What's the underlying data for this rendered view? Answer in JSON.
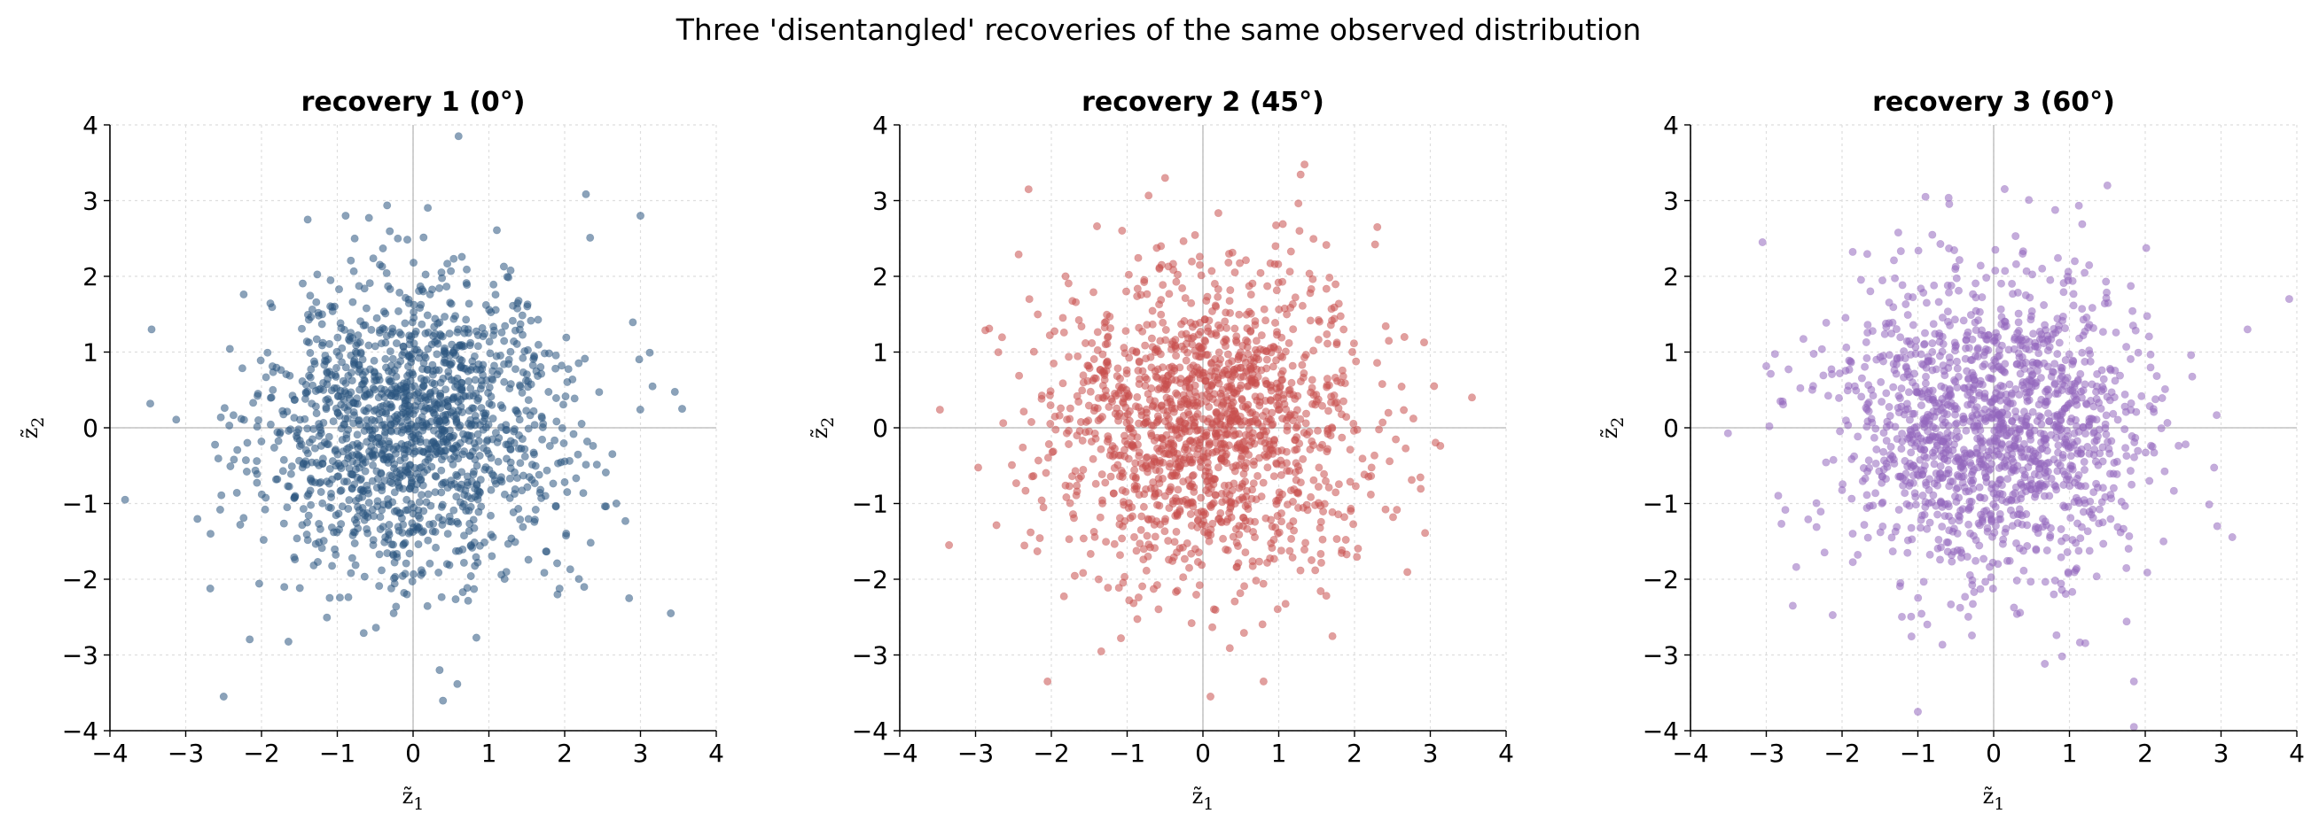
{
  "figure": {
    "title": "Three 'disentangled' recoveries of the same observed distribution"
  },
  "chart_data": [
    {
      "type": "scatter",
      "title": "recovery 1 (0°)",
      "xlabel": "z̃1",
      "ylabel": "z̃2",
      "xlim": [
        -4,
        4
      ],
      "ylim": [
        -4,
        4
      ],
      "xticks": [
        -4,
        -3,
        -2,
        -1,
        0,
        1,
        2,
        3,
        4
      ],
      "yticks": [
        -4,
        -3,
        -2,
        -1,
        0,
        1,
        2,
        3,
        4
      ],
      "xtick_labels": [
        "−4",
        "−3",
        "−2",
        "−1",
        "0",
        "1",
        "2",
        "3",
        "4"
      ],
      "ytick_labels": [
        "−4",
        "−3",
        "−2",
        "−1",
        "0",
        "1",
        "2",
        "3",
        "4"
      ],
      "grid": true,
      "rotation_deg": 0,
      "color": "#2c5580",
      "seed": 11,
      "n_points": 1500,
      "notable_points": [
        [
          0.6,
          3.85
        ],
        [
          3.0,
          2.8
        ],
        [
          3.4,
          -2.45
        ],
        [
          -2.5,
          -3.55
        ],
        [
          -3.8,
          -0.95
        ],
        [
          -3.45,
          1.3
        ],
        [
          0.35,
          -3.2
        ],
        [
          3.55,
          0.25
        ],
        [
          2.85,
          -2.25
        ]
      ]
    },
    {
      "type": "scatter",
      "title": "recovery 2 (45°)",
      "xlabel": "z̃1",
      "ylabel": "z̃2",
      "xlim": [
        -4,
        4
      ],
      "ylim": [
        -4,
        4
      ],
      "xticks": [
        -4,
        -3,
        -2,
        -1,
        0,
        1,
        2,
        3,
        4
      ],
      "yticks": [
        -4,
        -3,
        -2,
        -1,
        0,
        1,
        2,
        3,
        4
      ],
      "xtick_labels": [
        "−4",
        "−3",
        "−2",
        "−1",
        "0",
        "1",
        "2",
        "3",
        "4"
      ],
      "ytick_labels": [
        "−4",
        "−3",
        "−2",
        "−1",
        "0",
        "1",
        "2",
        "3",
        "4"
      ],
      "grid": true,
      "rotation_deg": 45,
      "color": "#c9514f",
      "seed": 23,
      "n_points": 1500,
      "notable_points": [
        [
          -2.3,
          3.15
        ],
        [
          -0.5,
          3.3
        ],
        [
          3.55,
          0.4
        ],
        [
          3.05,
          0.55
        ],
        [
          -3.35,
          -1.55
        ],
        [
          0.1,
          -3.55
        ],
        [
          -2.05,
          -3.35
        ],
        [
          0.8,
          -3.35
        ],
        [
          2.3,
          2.65
        ]
      ]
    },
    {
      "type": "scatter",
      "title": "recovery 3 (60°)",
      "xlabel": "z̃1",
      "ylabel": "z̃2",
      "xlim": [
        -4,
        4
      ],
      "ylim": [
        -4,
        4
      ],
      "xticks": [
        -4,
        -3,
        -2,
        -1,
        0,
        1,
        2,
        3,
        4
      ],
      "yticks": [
        -4,
        -3,
        -2,
        -1,
        0,
        1,
        2,
        3,
        4
      ],
      "xtick_labels": [
        "−4",
        "−3",
        "−2",
        "−1",
        "0",
        "1",
        "2",
        "3",
        "4"
      ],
      "ytick_labels": [
        "−4",
        "−3",
        "−2",
        "−1",
        "0",
        "1",
        "2",
        "3",
        "4"
      ],
      "grid": true,
      "rotation_deg": 60,
      "color": "#9467bd",
      "seed": 37,
      "n_points": 1500,
      "notable_points": [
        [
          -3.05,
          2.45
        ],
        [
          3.9,
          1.7
        ],
        [
          3.35,
          1.3
        ],
        [
          -1.0,
          -3.75
        ],
        [
          1.85,
          -3.95
        ],
        [
          1.5,
          3.2
        ],
        [
          -2.65,
          -2.35
        ],
        [
          2.95,
          -1.3
        ],
        [
          -0.9,
          3.05
        ]
      ]
    }
  ]
}
